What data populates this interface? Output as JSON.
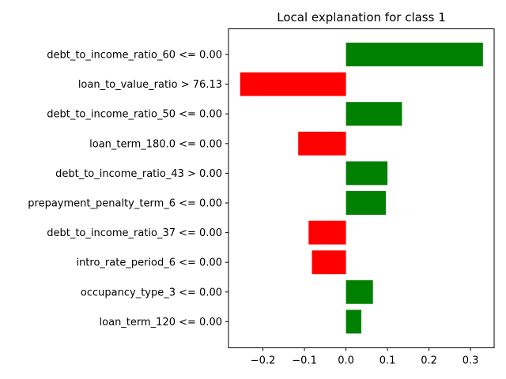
{
  "chart_data": {
    "type": "bar",
    "orientation": "horizontal",
    "title": "Local explanation for class 1",
    "xlabel": "",
    "ylabel": "",
    "xlim": [
      -0.283,
      0.357
    ],
    "xticks": [
      -0.2,
      -0.1,
      0.0,
      0.1,
      0.2,
      0.3
    ],
    "xtick_labels": [
      "−0.2",
      "−0.1",
      "0.0",
      "0.1",
      "0.2",
      "0.3"
    ],
    "grid": false,
    "legend": "none",
    "colors": {
      "positive": "#008000",
      "negative": "#ff0000"
    },
    "categories": [
      "debt_to_income_ratio_60 <= 0.00",
      "loan_to_value_ratio > 76.13",
      "debt_to_income_ratio_50 <= 0.00",
      "loan_term_180.0 <= 0.00",
      "debt_to_income_ratio_43 > 0.00",
      "prepayment_penalty_term_6 <= 0.00",
      "debt_to_income_ratio_37 <= 0.00",
      "intro_rate_period_6 <= 0.00",
      "occupancy_type_3 <= 0.00",
      "loan_term_120 <= 0.00"
    ],
    "values": [
      0.33,
      -0.255,
      0.135,
      -0.115,
      0.1,
      0.096,
      -0.09,
      -0.082,
      0.065,
      0.037
    ]
  }
}
